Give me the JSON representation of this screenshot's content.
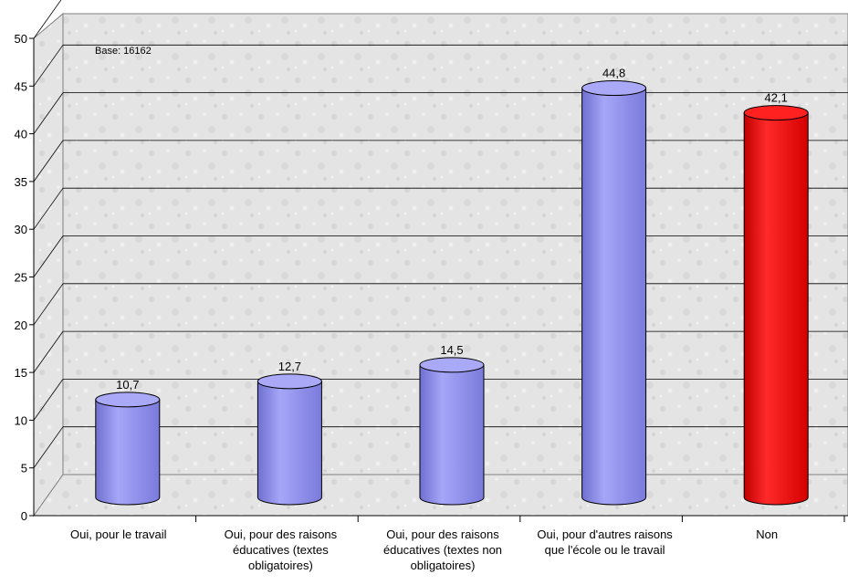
{
  "chart_data": {
    "type": "bar",
    "style": "3d-cylinder",
    "categories": [
      "Oui, pour le travail",
      "Oui, pour des raisons éducatives (textes obligatoires)",
      "Oui, pour des raisons éducatives (textes non obligatoires)",
      "Oui, pour d'autres raisons que l'école ou le travail",
      "Non"
    ],
    "values": [
      10.7,
      12.7,
      14.5,
      44.8,
      42.1
    ],
    "value_labels": [
      "10,7",
      "12,7",
      "14,5",
      "44,8",
      "42,1"
    ],
    "bar_colors": [
      "#9a9aee",
      "#9a9aee",
      "#9a9aee",
      "#9a9aee",
      "#ee1111"
    ],
    "ylim": [
      0,
      50
    ],
    "yticks": [
      "0",
      "5",
      "10",
      "15",
      "20",
      "25",
      "30",
      "35",
      "40",
      "45",
      "50"
    ],
    "grid": true,
    "legend": "none",
    "annotation": "Base: 16162",
    "title": "",
    "xlabel": "",
    "ylabel": ""
  }
}
